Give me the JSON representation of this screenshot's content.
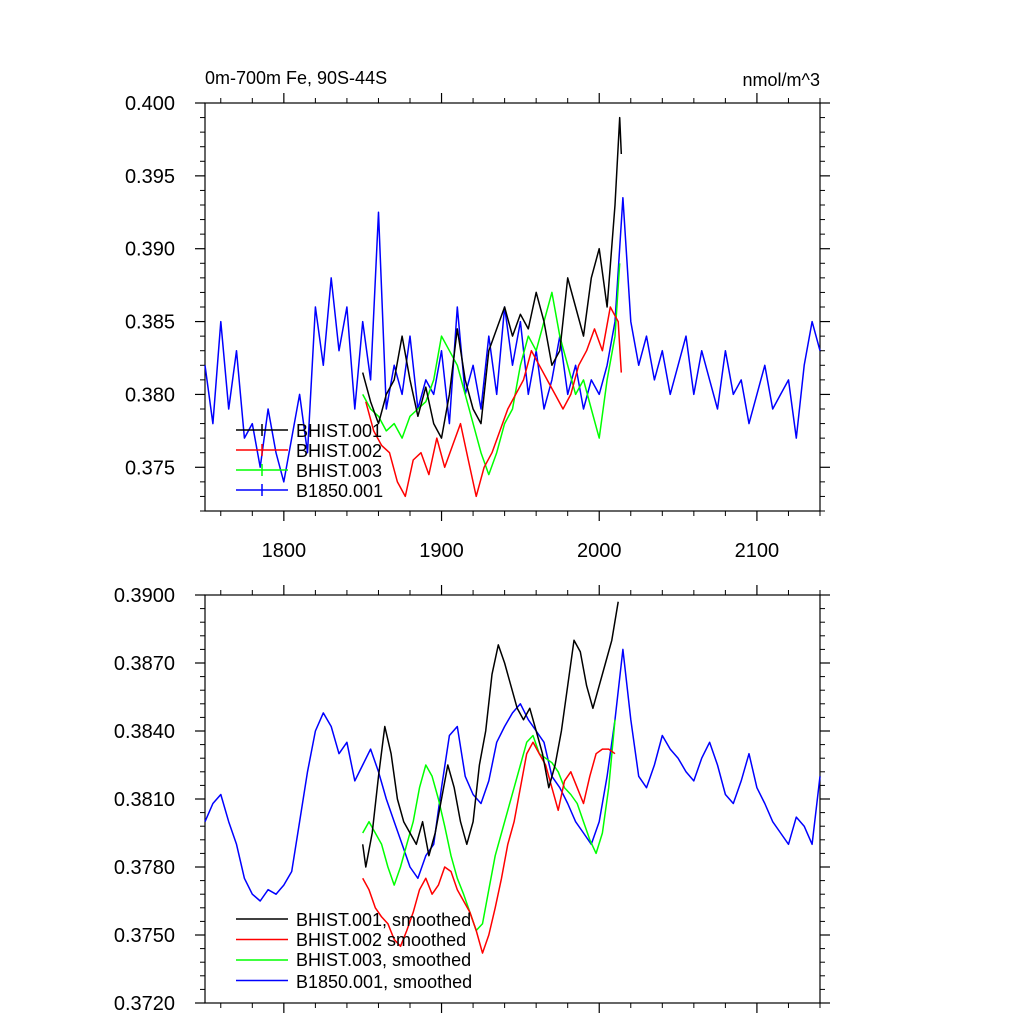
{
  "chart_data": [
    {
      "type": "line",
      "title": "0m-700m Fe, 90S-44S",
      "units": "nmol/m^3",
      "xlim": [
        1750,
        2140
      ],
      "ylim": [
        0.372,
        0.4
      ],
      "xticks": [
        1800,
        1900,
        2000,
        2100
      ],
      "xtick_labels": [
        "1800",
        "1900",
        "2000",
        "2100"
      ],
      "yticks": [
        0.375,
        0.38,
        0.385,
        0.39,
        0.395,
        0.4
      ],
      "ytick_labels": [
        "0.375",
        "0.380",
        "0.385",
        "0.390",
        "0.395",
        "0.400"
      ],
      "legend": [
        "BHIST.001",
        "BHIST.002",
        "BHIST.003",
        "B1850.001"
      ],
      "legend_position": "lower-left",
      "series": [
        {
          "name": "BHIST.001",
          "color": "#000000",
          "x": [
            1850,
            1855,
            1860,
            1865,
            1870,
            1875,
            1880,
            1885,
            1890,
            1895,
            1900,
            1905,
            1910,
            1915,
            1920,
            1925,
            1930,
            1935,
            1940,
            1945,
            1950,
            1955,
            1960,
            1965,
            1970,
            1975,
            1980,
            1985,
            1990,
            1995,
            2000,
            2005,
            2010,
            2013,
            2014
          ],
          "y": [
            0.3815,
            0.3795,
            0.378,
            0.38,
            0.381,
            0.384,
            0.381,
            0.3785,
            0.3805,
            0.378,
            0.377,
            0.38,
            0.3845,
            0.381,
            0.379,
            0.378,
            0.383,
            0.3845,
            0.386,
            0.384,
            0.3855,
            0.3845,
            0.387,
            0.385,
            0.382,
            0.383,
            0.388,
            0.386,
            0.384,
            0.388,
            0.39,
            0.386,
            0.393,
            0.399,
            0.3965
          ]
        },
        {
          "name": "BHIST.002",
          "color": "#ff0000",
          "x": [
            1852,
            1857,
            1862,
            1867,
            1872,
            1877,
            1882,
            1887,
            1892,
            1897,
            1902,
            1907,
            1912,
            1917,
            1922,
            1927,
            1932,
            1937,
            1942,
            1947,
            1952,
            1957,
            1962,
            1967,
            1972,
            1977,
            1982,
            1987,
            1992,
            1997,
            2002,
            2007,
            2012,
            2014
          ],
          "y": [
            0.3795,
            0.3775,
            0.3765,
            0.376,
            0.374,
            0.373,
            0.3755,
            0.376,
            0.3745,
            0.377,
            0.375,
            0.3765,
            0.378,
            0.3755,
            0.373,
            0.375,
            0.376,
            0.3775,
            0.379,
            0.38,
            0.381,
            0.383,
            0.382,
            0.381,
            0.38,
            0.379,
            0.38,
            0.382,
            0.383,
            0.3845,
            0.383,
            0.386,
            0.385,
            0.3815
          ]
        },
        {
          "name": "BHIST.003",
          "color": "#00ff00",
          "x": [
            1850,
            1855,
            1860,
            1865,
            1870,
            1875,
            1880,
            1885,
            1890,
            1895,
            1900,
            1905,
            1910,
            1915,
            1920,
            1925,
            1930,
            1935,
            1940,
            1945,
            1950,
            1955,
            1960,
            1965,
            1970,
            1975,
            1980,
            1985,
            1990,
            1995,
            2000,
            2005,
            2010,
            2013
          ],
          "y": [
            0.38,
            0.379,
            0.3785,
            0.3775,
            0.378,
            0.377,
            0.3785,
            0.379,
            0.3795,
            0.381,
            0.384,
            0.383,
            0.382,
            0.38,
            0.378,
            0.376,
            0.3745,
            0.376,
            0.378,
            0.379,
            0.382,
            0.384,
            0.383,
            0.385,
            0.387,
            0.384,
            0.382,
            0.38,
            0.381,
            0.379,
            0.377,
            0.381,
            0.384,
            0.389
          ]
        },
        {
          "name": "B1850.001",
          "color": "#0000ff",
          "x": [
            1750,
            1755,
            1760,
            1765,
            1770,
            1775,
            1780,
            1785,
            1790,
            1795,
            1800,
            1805,
            1810,
            1815,
            1820,
            1825,
            1830,
            1835,
            1840,
            1845,
            1850,
            1855,
            1860,
            1865,
            1870,
            1875,
            1880,
            1885,
            1890,
            1895,
            1900,
            1905,
            1910,
            1915,
            1920,
            1925,
            1930,
            1935,
            1940,
            1945,
            1950,
            1955,
            1960,
            1965,
            1970,
            1975,
            1980,
            1985,
            1990,
            1995,
            2000,
            2005,
            2010,
            2015,
            2020,
            2025,
            2030,
            2035,
            2040,
            2045,
            2050,
            2055,
            2060,
            2065,
            2070,
            2075,
            2080,
            2085,
            2090,
            2095,
            2100,
            2105,
            2110,
            2115,
            2120,
            2125,
            2130,
            2135,
            2140
          ],
          "y": [
            0.382,
            0.378,
            0.385,
            0.379,
            0.383,
            0.377,
            0.378,
            0.375,
            0.379,
            0.376,
            0.374,
            0.377,
            0.38,
            0.376,
            0.386,
            0.382,
            0.388,
            0.383,
            0.386,
            0.379,
            0.385,
            0.381,
            0.3925,
            0.379,
            0.382,
            0.38,
            0.384,
            0.379,
            0.381,
            0.38,
            0.383,
            0.378,
            0.386,
            0.38,
            0.382,
            0.379,
            0.384,
            0.38,
            0.386,
            0.382,
            0.385,
            0.38,
            0.383,
            0.379,
            0.381,
            0.384,
            0.38,
            0.382,
            0.379,
            0.381,
            0.38,
            0.382,
            0.385,
            0.3935,
            0.385,
            0.382,
            0.384,
            0.381,
            0.383,
            0.38,
            0.382,
            0.384,
            0.38,
            0.383,
            0.381,
            0.379,
            0.383,
            0.38,
            0.381,
            0.378,
            0.38,
            0.382,
            0.379,
            0.38,
            0.381,
            0.377,
            0.382,
            0.385,
            0.383
          ]
        }
      ]
    },
    {
      "type": "line",
      "title": "",
      "xlim": [
        1750,
        2140
      ],
      "ylim": [
        0.372,
        0.39
      ],
      "yticks": [
        0.372,
        0.375,
        0.378,
        0.381,
        0.384,
        0.387,
        0.39
      ],
      "ytick_labels": [
        "0.3720",
        "0.3750",
        "0.3780",
        "0.3810",
        "0.3840",
        "0.3870",
        "0.3900"
      ],
      "legend": [
        "BHIST.001, smoothed",
        "BHIST.002 smoothed",
        "BHIST.003, smoothed",
        "B1850.001, smoothed"
      ],
      "legend_position": "lower-left",
      "series": [
        {
          "name": "BHIST.001, smoothed",
          "color": "#000000",
          "x": [
            1850,
            1852,
            1856,
            1860,
            1864,
            1868,
            1872,
            1876,
            1880,
            1884,
            1888,
            1892,
            1896,
            1900,
            1904,
            1908,
            1912,
            1916,
            1920,
            1924,
            1928,
            1932,
            1936,
            1940,
            1944,
            1948,
            1952,
            1956,
            1960,
            1964,
            1968,
            1972,
            1976,
            1980,
            1984,
            1988,
            1992,
            1996,
            2000,
            2004,
            2008,
            2012
          ],
          "y": [
            0.379,
            0.378,
            0.3795,
            0.382,
            0.3842,
            0.383,
            0.381,
            0.38,
            0.3795,
            0.379,
            0.38,
            0.3785,
            0.3795,
            0.381,
            0.3825,
            0.3815,
            0.38,
            0.379,
            0.38,
            0.3825,
            0.384,
            0.3865,
            0.3878,
            0.387,
            0.386,
            0.385,
            0.3845,
            0.385,
            0.384,
            0.383,
            0.3815,
            0.3825,
            0.384,
            0.386,
            0.388,
            0.3875,
            0.386,
            0.385,
            0.386,
            0.387,
            0.388,
            0.3897
          ]
        },
        {
          "name": "BHIST.002 smoothed",
          "color": "#ff0000",
          "x": [
            1850,
            1854,
            1858,
            1862,
            1866,
            1870,
            1874,
            1878,
            1882,
            1886,
            1890,
            1894,
            1898,
            1902,
            1906,
            1910,
            1914,
            1918,
            1922,
            1926,
            1930,
            1934,
            1938,
            1942,
            1946,
            1950,
            1954,
            1958,
            1962,
            1966,
            1970,
            1974,
            1978,
            1982,
            1986,
            1990,
            1994,
            1998,
            2002,
            2006,
            2010
          ],
          "y": [
            0.3775,
            0.377,
            0.3762,
            0.3758,
            0.3755,
            0.3748,
            0.3745,
            0.3752,
            0.376,
            0.377,
            0.3775,
            0.3768,
            0.3772,
            0.378,
            0.3778,
            0.377,
            0.3765,
            0.376,
            0.3752,
            0.3742,
            0.375,
            0.3762,
            0.3775,
            0.379,
            0.38,
            0.3815,
            0.383,
            0.3835,
            0.383,
            0.3825,
            0.3815,
            0.3805,
            0.3818,
            0.3822,
            0.3815,
            0.3808,
            0.382,
            0.383,
            0.3832,
            0.3832,
            0.383
          ]
        },
        {
          "name": "BHIST.003, smoothed",
          "color": "#00ff00",
          "x": [
            1850,
            1854,
            1858,
            1862,
            1866,
            1870,
            1874,
            1878,
            1882,
            1886,
            1890,
            1894,
            1898,
            1902,
            1906,
            1910,
            1914,
            1918,
            1922,
            1926,
            1930,
            1934,
            1938,
            1942,
            1946,
            1950,
            1954,
            1958,
            1962,
            1966,
            1970,
            1974,
            1978,
            1982,
            1986,
            1990,
            1994,
            1998,
            2002,
            2006,
            2010
          ],
          "y": [
            0.3795,
            0.38,
            0.3795,
            0.379,
            0.378,
            0.3772,
            0.378,
            0.379,
            0.38,
            0.3815,
            0.3825,
            0.382,
            0.381,
            0.3798,
            0.3785,
            0.3775,
            0.3768,
            0.376,
            0.3752,
            0.3755,
            0.377,
            0.3785,
            0.3795,
            0.3805,
            0.3815,
            0.3825,
            0.3835,
            0.3838,
            0.383,
            0.3828,
            0.3826,
            0.3822,
            0.3815,
            0.3812,
            0.3808,
            0.38,
            0.3792,
            0.3786,
            0.3795,
            0.3815,
            0.3845
          ]
        },
        {
          "name": "B1850.001, smoothed",
          "color": "#0000ff",
          "x": [
            1750,
            1755,
            1760,
            1765,
            1770,
            1775,
            1780,
            1785,
            1790,
            1795,
            1800,
            1805,
            1810,
            1815,
            1820,
            1825,
            1830,
            1835,
            1840,
            1845,
            1850,
            1855,
            1860,
            1865,
            1870,
            1875,
            1880,
            1885,
            1890,
            1895,
            1900,
            1905,
            1910,
            1915,
            1920,
            1925,
            1930,
            1935,
            1940,
            1945,
            1950,
            1955,
            1960,
            1965,
            1970,
            1975,
            1980,
            1985,
            1990,
            1995,
            2000,
            2005,
            2010,
            2015,
            2020,
            2025,
            2030,
            2035,
            2040,
            2045,
            2050,
            2055,
            2060,
            2065,
            2070,
            2075,
            2080,
            2085,
            2090,
            2095,
            2100,
            2105,
            2110,
            2115,
            2120,
            2125,
            2130,
            2135,
            2140
          ],
          "y": [
            0.38,
            0.3808,
            0.3812,
            0.38,
            0.379,
            0.3775,
            0.3768,
            0.3765,
            0.377,
            0.3768,
            0.3772,
            0.3778,
            0.38,
            0.3822,
            0.384,
            0.3848,
            0.3842,
            0.383,
            0.3835,
            0.3818,
            0.3825,
            0.3832,
            0.3822,
            0.381,
            0.38,
            0.379,
            0.378,
            0.3775,
            0.3785,
            0.379,
            0.3815,
            0.3838,
            0.3842,
            0.382,
            0.3812,
            0.3808,
            0.3818,
            0.3835,
            0.3842,
            0.3848,
            0.3852,
            0.3845,
            0.384,
            0.3835,
            0.382,
            0.3815,
            0.3808,
            0.38,
            0.3795,
            0.379,
            0.38,
            0.382,
            0.3845,
            0.3876,
            0.3845,
            0.382,
            0.3815,
            0.3825,
            0.3838,
            0.3832,
            0.3828,
            0.3822,
            0.3818,
            0.3828,
            0.3835,
            0.3825,
            0.3812,
            0.3808,
            0.3818,
            0.383,
            0.3815,
            0.3808,
            0.38,
            0.3795,
            0.379,
            0.3802,
            0.3798,
            0.379,
            0.382
          ]
        }
      ]
    }
  ]
}
